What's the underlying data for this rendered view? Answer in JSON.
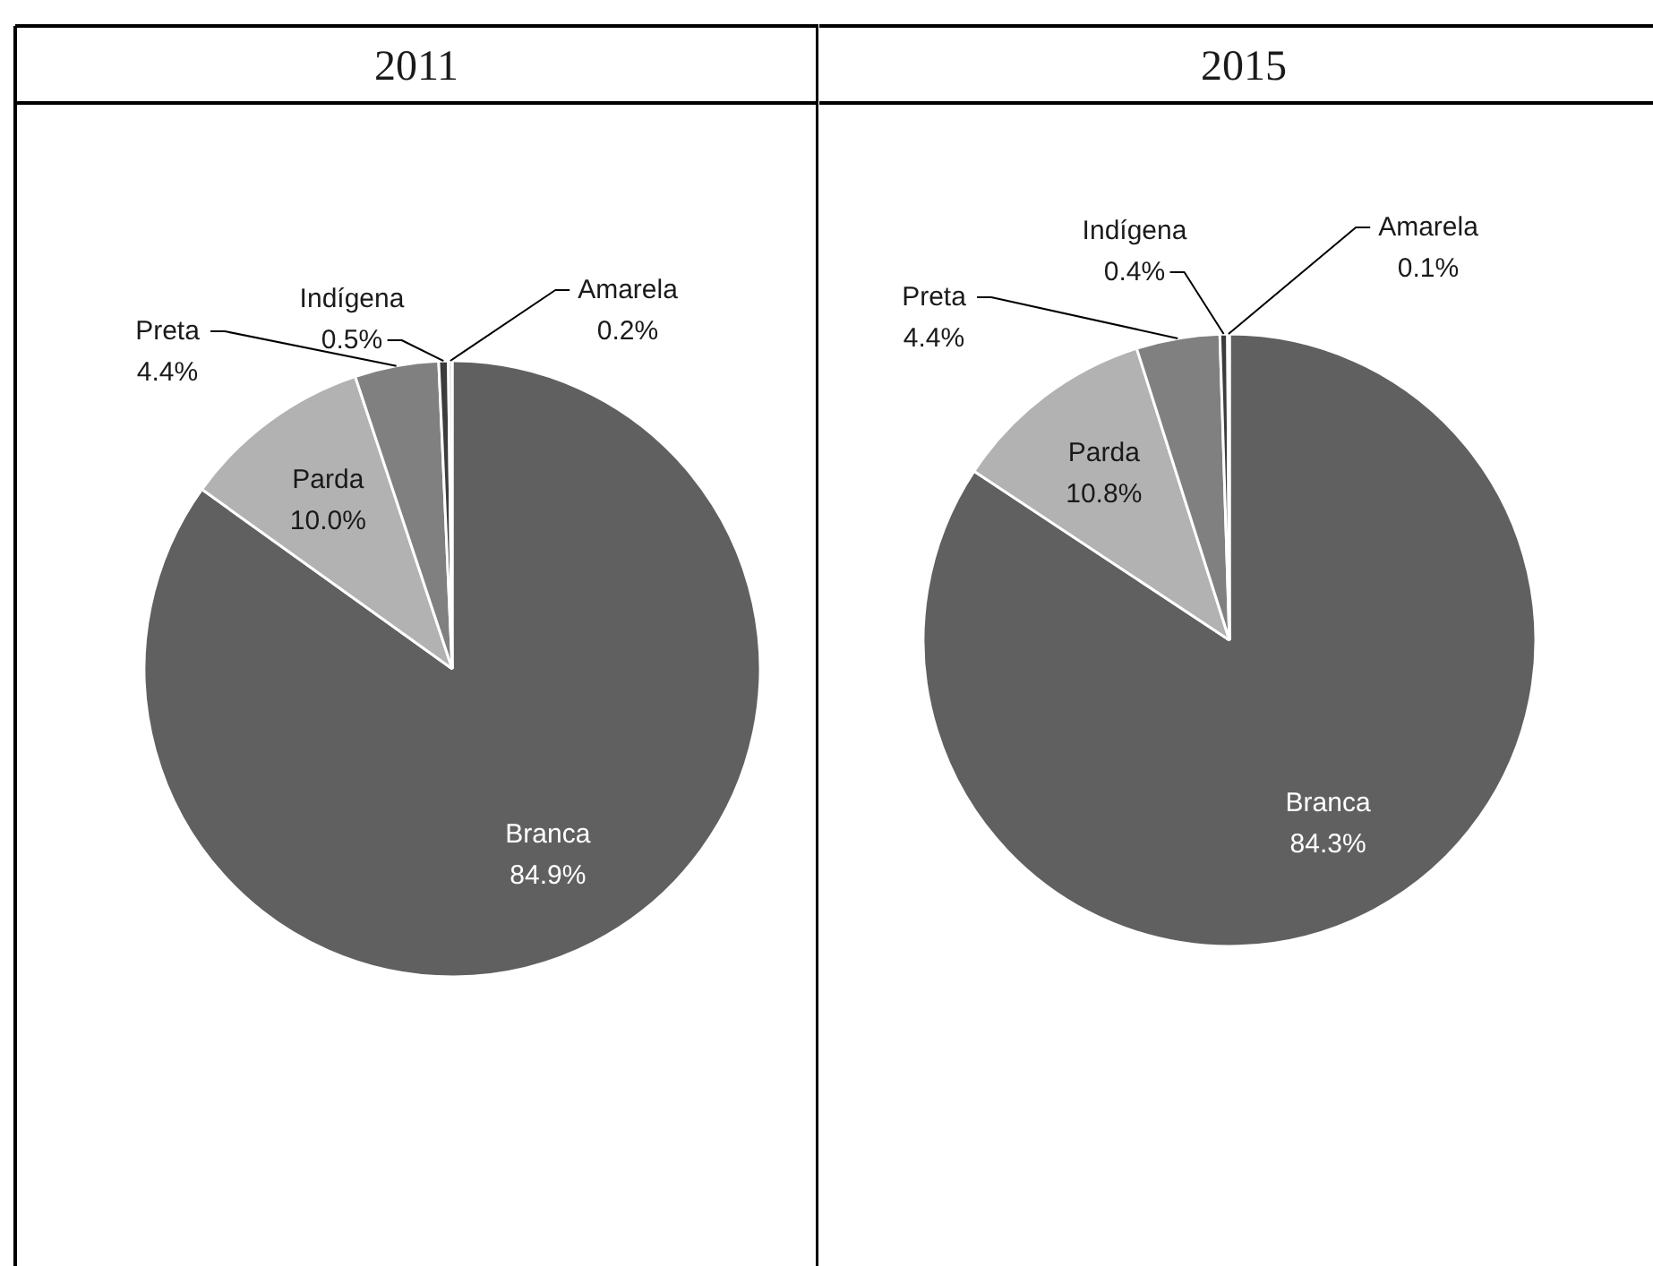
{
  "chart_data": [
    {
      "type": "pie",
      "title": "2011",
      "categories": [
        "Branca",
        "Parda",
        "Preta",
        "Indígena",
        "Amarela"
      ],
      "values": [
        84.9,
        10.0,
        4.4,
        0.5,
        0.2
      ],
      "colors": [
        "#606060",
        "#b2b2b2",
        "#808080",
        "#3c3c3c",
        "#d9d9d9"
      ],
      "value_labels": [
        "84.9%",
        "10.0%",
        "4.4%",
        "0.5%",
        "0.2%"
      ]
    },
    {
      "type": "pie",
      "title": "2015",
      "categories": [
        "Branca",
        "Parda",
        "Preta",
        "Indígena",
        "Amarela"
      ],
      "values": [
        84.3,
        10.8,
        4.4,
        0.4,
        0.1
      ],
      "colors": [
        "#606060",
        "#b2b2b2",
        "#808080",
        "#3c3c3c",
        "#d9d9d9"
      ],
      "value_labels": [
        "84.3%",
        "10.8%",
        "4.4%",
        "0.4%",
        "0.1%"
      ]
    }
  ]
}
